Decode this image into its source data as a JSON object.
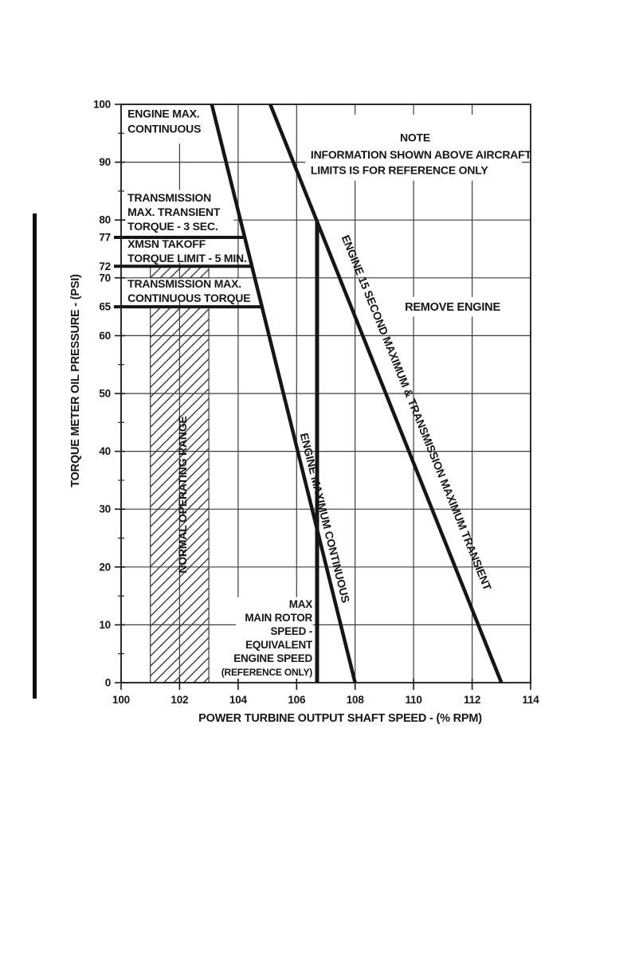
{
  "page": {
    "background": "#ffffff",
    "change_bar_color": "#0d0d0d"
  },
  "chart_data": {
    "type": "line",
    "title": "",
    "xlabel": "POWER TURBINE OUTPUT SHAFT SPEED - (% RPM)",
    "ylabel": "TORQUE METER OIL PRESSURE - (PSI)",
    "xlim": [
      100,
      114
    ],
    "ylim": [
      0,
      100
    ],
    "x_ticks": [
      100,
      102,
      104,
      106,
      108,
      110,
      112,
      114
    ],
    "y_ticks": [
      0,
      10,
      20,
      30,
      40,
      50,
      60,
      65,
      70,
      72,
      77,
      80,
      90,
      100
    ],
    "y_minor_ticks": [
      5,
      15,
      25,
      35,
      45,
      55,
      85,
      95
    ],
    "grid_x": [
      102,
      104,
      106,
      108,
      110,
      112
    ],
    "grid_y": [
      10,
      20,
      30,
      40,
      50,
      60,
      70,
      80,
      90
    ],
    "line_color": "#161616",
    "grid_color": "#3c3c3c",
    "legend_position": "none",
    "grid": true,
    "series": [
      {
        "name": "transmission-max-transient-limit-line",
        "label": "TRANSMISSION MAX. TRANSIENT TORQUE - 3 SEC.",
        "points": [
          [
            100,
            77
          ],
          [
            104.23,
            77
          ]
        ],
        "width": 4,
        "extend_left": true
      },
      {
        "name": "xmsn-takoff-limit-line",
        "label": "XMSN TAKOFF TORQUE LIMIT - 5 MIN.",
        "points": [
          [
            100,
            72
          ],
          [
            104.47,
            72
          ]
        ],
        "width": 4,
        "extend_left": true
      },
      {
        "name": "transmission-max-continuous-limit-line",
        "label": "TRANSMISSION MAX. CONTINUOUS TORQUE",
        "points": [
          [
            100,
            65
          ],
          [
            104.81,
            65
          ]
        ],
        "width": 4,
        "extend_left": true
      },
      {
        "name": "engine-max-continuous-line",
        "label": "ENGINE MAXIMUM CONTINUOUS",
        "points": [
          [
            103.1,
            100
          ],
          [
            108,
            0
          ]
        ],
        "width": 4.5
      },
      {
        "name": "engine-15-second-max-line",
        "label": "ENGINE 15 SECOND MAXIMUM & TRANSMISSION MAXIMUM TRANSIENT",
        "points": [
          [
            105.1,
            100
          ],
          [
            113,
            0
          ]
        ],
        "width": 4.5
      },
      {
        "name": "max-main-rotor-speed-line",
        "label": "MAX MAIN ROTOR SPEED - EQUIVALENT ENGINE SPEED (REFERENCE ONLY)",
        "points": [
          [
            106.7,
            0
          ],
          [
            106.7,
            79.7
          ]
        ],
        "width": 5
      }
    ],
    "hatch_regions": [
      {
        "name": "normal-operating-range-band",
        "x1": 101,
        "y1": 0,
        "x2": 103,
        "y2": 65
      },
      {
        "name": "normal-operating-range-band-upper",
        "x1": 101,
        "y1": 70,
        "x2": 103,
        "y2": 72
      }
    ],
    "white_boxes": [
      {
        "name": "note-mask",
        "x1": 106.3,
        "y_top": 98.2,
        "x2": 113.7,
        "y_bot": 86.8
      },
      {
        "name": "engine-max-continuous-label-mask",
        "x1": 100.15,
        "y_top": 100,
        "x2": 103.4,
        "y_bot": 93.2
      },
      {
        "name": "transmission-labels-mask",
        "x1": 100.15,
        "y_top": 85.2,
        "x2": 103.85,
        "y_bot": 72.6
      },
      {
        "name": "transmission-continuous-label-mask",
        "x1": 100.15,
        "y_top": 69.85,
        "x2": 104.4,
        "y_bot": 65.95
      },
      {
        "name": "rotor-speed-label-mask",
        "x1": 103.92,
        "y_top": 14.8,
        "x2": 106.56,
        "y_bot": 0.5
      },
      {
        "name": "remove-engine-label-mask",
        "x1": 109.4,
        "y_top": 66.7,
        "x2": 113.3,
        "y_bot": 63.3
      }
    ],
    "annotations": [
      {
        "name": "label-engine-max-continuous",
        "lines": [
          "ENGINE MAX.",
          "CONTINUOUS"
        ],
        "x": 100.22,
        "y": 98.4,
        "anchor": "start",
        "fs": 14,
        "lh": 19
      },
      {
        "name": "note-title",
        "lines": [
          "NOTE"
        ],
        "x": 110.05,
        "y": 94.3,
        "anchor": "middle",
        "fs": 14,
        "lh": 19
      },
      {
        "name": "note-body",
        "lines": [
          "INFORMATION SHOWN ABOVE AIRCRAFT",
          "LIMITS IS FOR REFERENCE ONLY"
        ],
        "x": 106.48,
        "y": 91.3,
        "anchor": "start",
        "fs": 14,
        "lh": 19.5
      },
      {
        "name": "label-transmission-max-transient",
        "lines": [
          "TRANSMISSION",
          "MAX. TRANSIENT",
          "TORQUE - 3 SEC."
        ],
        "x": 100.22,
        "y": 83.9,
        "anchor": "start",
        "fs": 14,
        "lh": 18
      },
      {
        "name": "label-xmsn-takoff",
        "lines": [
          "XMSN TAKOFF",
          "TORQUE LIMIT - 5 MIN."
        ],
        "x": 100.22,
        "y": 75.9,
        "anchor": "start",
        "fs": 14,
        "lh": 18
      },
      {
        "name": "label-transmission-max-continuous",
        "lines": [
          "TRANSMISSION MAX.",
          "CONTINUOUS TORQUE"
        ],
        "x": 100.22,
        "y": 69.0,
        "anchor": "start",
        "fs": 14,
        "lh": 18
      },
      {
        "name": "label-remove-engine",
        "lines": [
          "REMOVE ENGINE"
        ],
        "x": 111.33,
        "y": 65.0,
        "anchor": "middle",
        "fs": 14.5,
        "lh": 18
      },
      {
        "name": "label-normal-operating-range",
        "lines": [
          "NORMAL OPERATING RANGE"
        ],
        "x": 102.1,
        "y": 32.5,
        "anchor": "middle",
        "rotate": -90,
        "fs": 14,
        "lh": 18
      },
      {
        "name": "label-engine-maximum-continuous",
        "lines": [
          "ENGINE MAXIMUM CONTINUOUS"
        ],
        "x": 106.97,
        "y": 28.5,
        "anchor": "middle",
        "rotate": 76,
        "fs": 14,
        "lh": 18
      },
      {
        "name": "label-engine-15-second-max",
        "lines": [
          "ENGINE 15 SECOND MAXIMUM & TRANSMISSION MAXIMUM TRANSIENT"
        ],
        "x": 110.1,
        "y": 46.7,
        "anchor": "middle",
        "rotate": 68,
        "fs": 14,
        "lh": 18
      },
      {
        "name": "label-max-main-rotor-speed",
        "lines": [
          "MAX",
          "MAIN ROTOR",
          "SPEED -",
          "EQUIVALENT",
          "ENGINE SPEED",
          "(REFERENCE ONLY)"
        ],
        "x": 106.54,
        "y": 13.6,
        "anchor": "end",
        "fs": 13.5,
        "lh": 17,
        "font_sizes": [
          13.5,
          13.5,
          13.5,
          13.5,
          13.5,
          12
        ]
      }
    ]
  }
}
